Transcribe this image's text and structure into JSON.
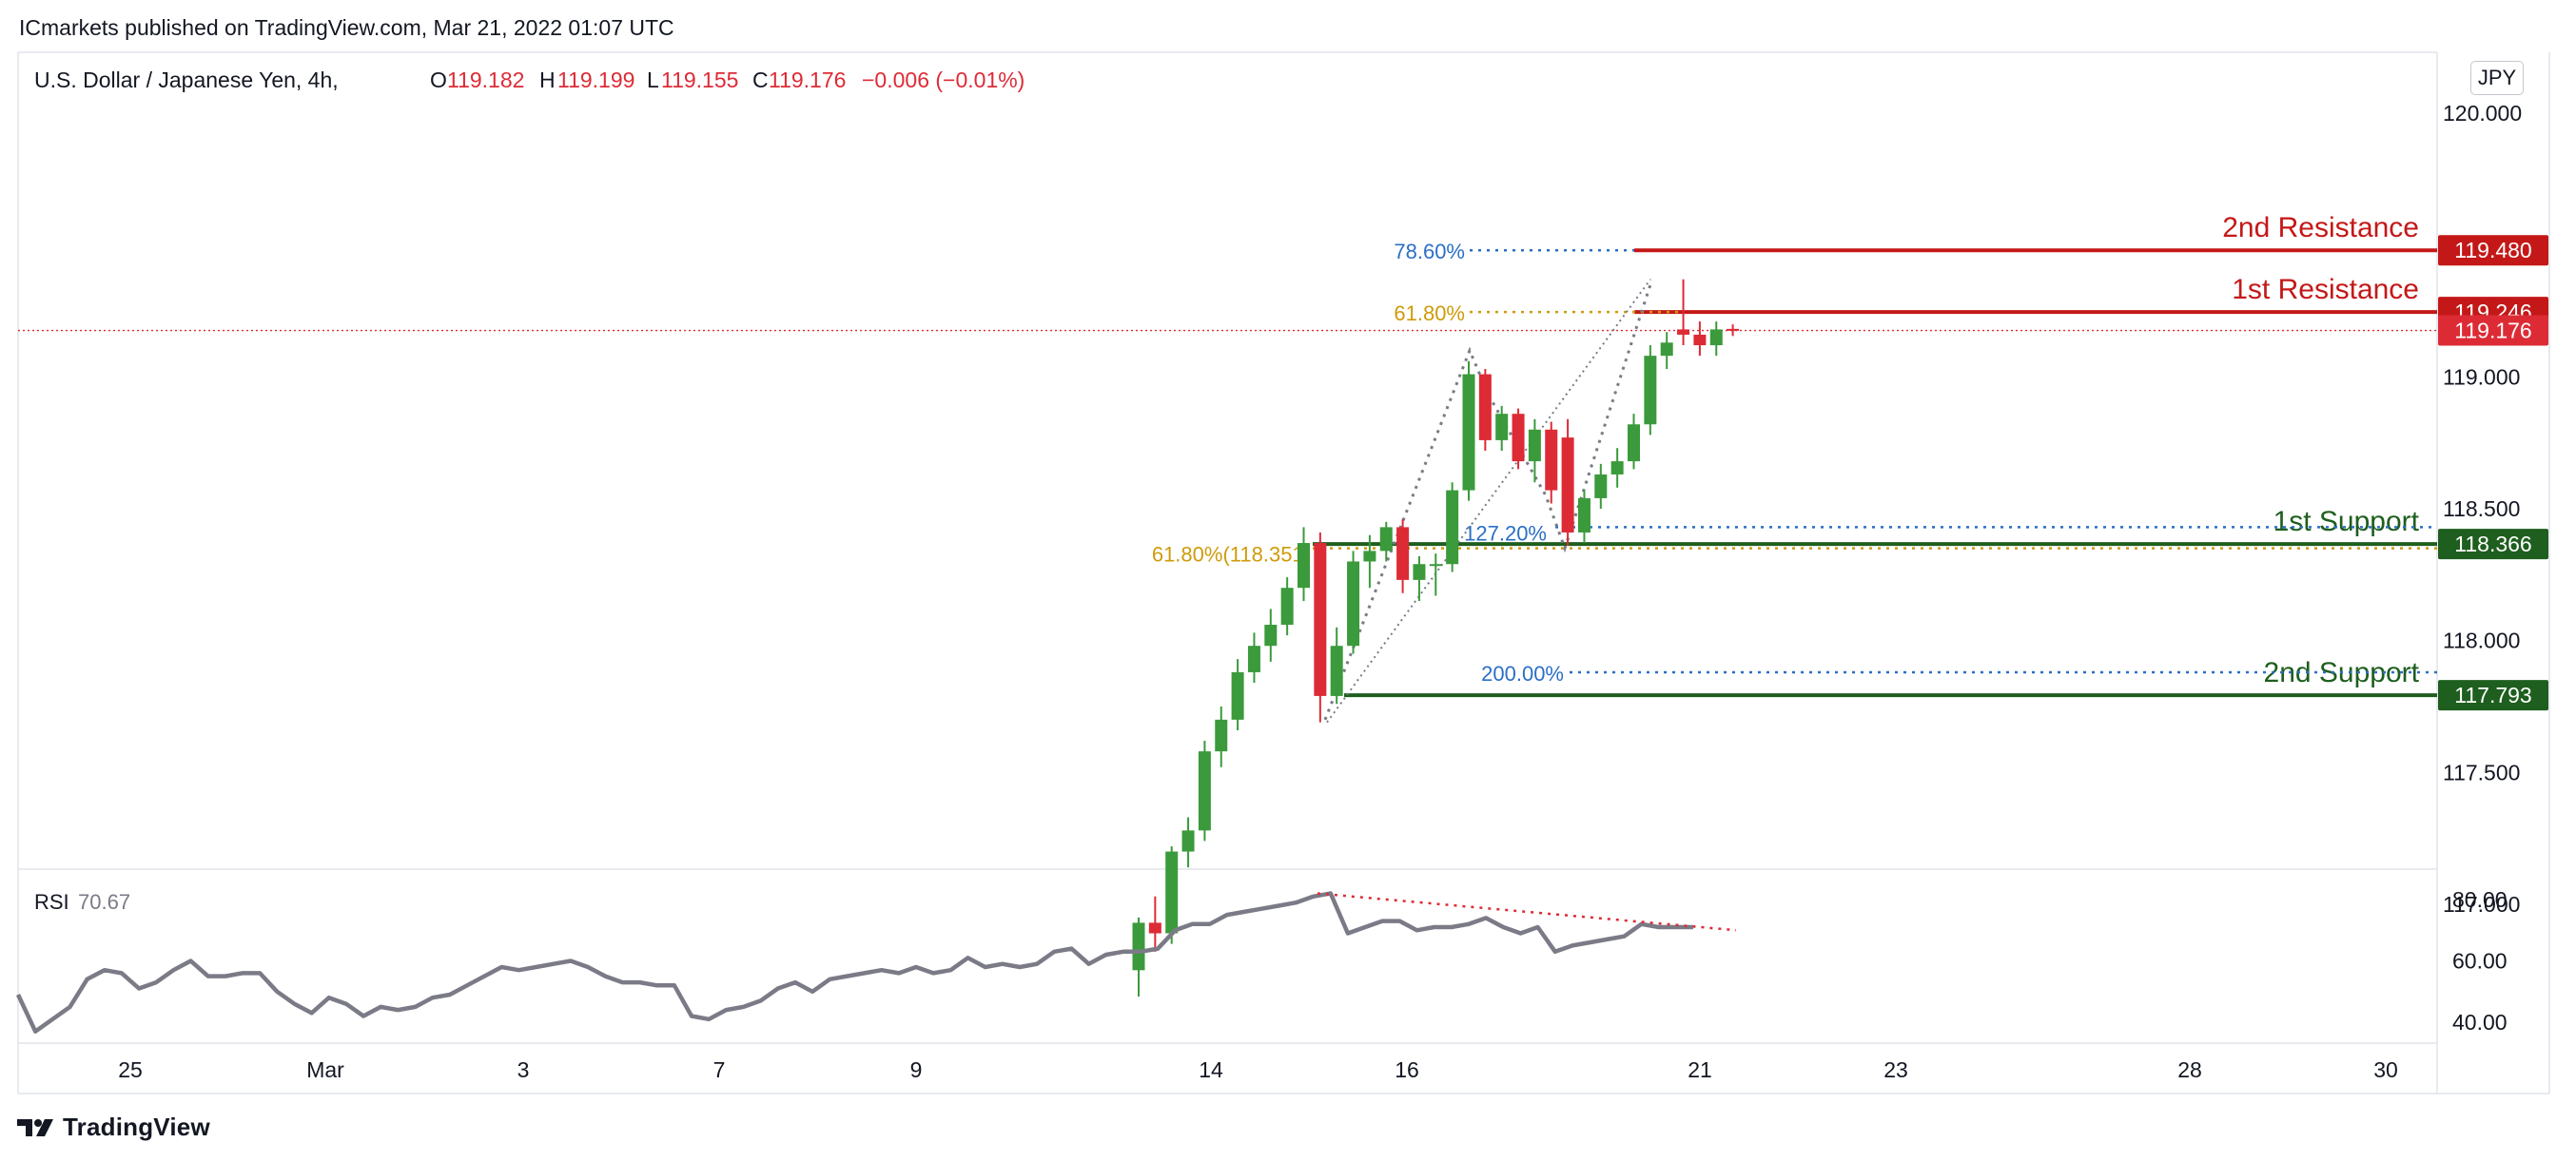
{
  "header": {
    "published": "ICmarkets published on TradingView.com, Mar 21, 2022 01:07 UTC"
  },
  "legend": {
    "symbol": "U.S. Dollar / Japanese Yen, 4h,",
    "o_label": "O",
    "o_value": "119.182",
    "h_label": "H",
    "h_value": "119.199",
    "l_label": "L",
    "l_value": "119.155",
    "c_label": "C",
    "c_value": "119.176",
    "change": "−0.006 (−0.01%)"
  },
  "currency_badge": "JPY",
  "brand": "TradingView",
  "colors": {
    "up": "#3b9a3b",
    "down": "#dd2b36",
    "resistance": "#c41818",
    "support": "#1e5e1e",
    "fib_orange": "#cf9b0b",
    "fib_blue": "#2b6fc6",
    "rsi_line": "#7b7b87",
    "axis_text": "#131722"
  },
  "chart_data": {
    "type": "candlestick",
    "timeframe": "4h",
    "yaxis": {
      "ticks": [
        "120.000",
        "119.000",
        "118.500",
        "118.000",
        "117.500",
        "117.000"
      ],
      "range": [
        116.85,
        120.2
      ]
    },
    "xaxis": {
      "ticks": [
        "25",
        "Mar",
        "3",
        "7",
        "9",
        "14",
        "16",
        "21",
        "23",
        "28",
        "30"
      ]
    },
    "candles": [
      {
        "o": 116.75,
        "h": 116.95,
        "l": 116.65,
        "c": 116.93
      },
      {
        "o": 116.93,
        "h": 117.03,
        "l": 116.82,
        "c": 116.89
      },
      {
        "o": 116.89,
        "h": 117.22,
        "l": 116.85,
        "c": 117.2
      },
      {
        "o": 117.2,
        "h": 117.33,
        "l": 117.14,
        "c": 117.28
      },
      {
        "o": 117.28,
        "h": 117.62,
        "l": 117.24,
        "c": 117.58
      },
      {
        "o": 117.58,
        "h": 117.75,
        "l": 117.52,
        "c": 117.7
      },
      {
        "o": 117.7,
        "h": 117.93,
        "l": 117.66,
        "c": 117.88
      },
      {
        "o": 117.88,
        "h": 118.03,
        "l": 117.84,
        "c": 117.98
      },
      {
        "o": 117.98,
        "h": 118.12,
        "l": 117.92,
        "c": 118.06
      },
      {
        "o": 118.06,
        "h": 118.24,
        "l": 118.02,
        "c": 118.2
      },
      {
        "o": 118.2,
        "h": 118.43,
        "l": 118.15,
        "c": 118.37
      },
      {
        "o": 118.37,
        "h": 118.41,
        "l": 117.69,
        "c": 117.79
      },
      {
        "o": 117.79,
        "h": 118.05,
        "l": 117.76,
        "c": 117.98
      },
      {
        "o": 117.98,
        "h": 118.34,
        "l": 117.95,
        "c": 118.3
      },
      {
        "o": 118.3,
        "h": 118.4,
        "l": 118.2,
        "c": 118.34
      },
      {
        "o": 118.34,
        "h": 118.45,
        "l": 118.3,
        "c": 118.43
      },
      {
        "o": 118.43,
        "h": 118.46,
        "l": 118.18,
        "c": 118.23
      },
      {
        "o": 118.23,
        "h": 118.32,
        "l": 118.15,
        "c": 118.29
      },
      {
        "o": 118.29,
        "h": 118.33,
        "l": 118.17,
        "c": 118.29
      },
      {
        "o": 118.29,
        "h": 118.6,
        "l": 118.26,
        "c": 118.57
      },
      {
        "o": 118.57,
        "h": 119.06,
        "l": 118.53,
        "c": 119.01
      },
      {
        "o": 119.01,
        "h": 119.03,
        "l": 118.72,
        "c": 118.76
      },
      {
        "o": 118.76,
        "h": 118.89,
        "l": 118.72,
        "c": 118.86
      },
      {
        "o": 118.86,
        "h": 118.88,
        "l": 118.65,
        "c": 118.68
      },
      {
        "o": 118.68,
        "h": 118.84,
        "l": 118.6,
        "c": 118.8
      },
      {
        "o": 118.8,
        "h": 118.83,
        "l": 118.52,
        "c": 118.57
      },
      {
        "o": 118.77,
        "h": 118.84,
        "l": 118.36,
        "c": 118.41
      },
      {
        "o": 118.41,
        "h": 118.57,
        "l": 118.37,
        "c": 118.54
      },
      {
        "o": 118.54,
        "h": 118.67,
        "l": 118.5,
        "c": 118.63
      },
      {
        "o": 118.63,
        "h": 118.73,
        "l": 118.58,
        "c": 118.68
      },
      {
        "o": 118.68,
        "h": 118.86,
        "l": 118.65,
        "c": 118.82
      },
      {
        "o": 118.82,
        "h": 119.12,
        "l": 118.78,
        "c": 119.08
      },
      {
        "o": 119.08,
        "h": 119.17,
        "l": 119.03,
        "c": 119.13
      },
      {
        "o": 119.18,
        "h": 119.37,
        "l": 119.12,
        "c": 119.16
      },
      {
        "o": 119.16,
        "h": 119.21,
        "l": 119.08,
        "c": 119.12
      },
      {
        "o": 119.12,
        "h": 119.21,
        "l": 119.08,
        "c": 119.18
      },
      {
        "o": 119.182,
        "h": 119.199,
        "l": 119.155,
        "c": 119.176
      }
    ],
    "levels": [
      {
        "name": "2nd Resistance",
        "value": "119.480",
        "price": 119.48,
        "kind": "resistance"
      },
      {
        "name": "1st Resistance",
        "value": "119.246",
        "price": 119.246,
        "kind": "resistance"
      },
      {
        "name": "1st Support",
        "value": "118.366",
        "price": 118.366,
        "kind": "support"
      },
      {
        "name": "2nd Support",
        "value": "117.793",
        "price": 117.793,
        "kind": "support"
      }
    ],
    "current_price": {
      "value": "119.176",
      "price": 119.176
    },
    "fib_labels": [
      {
        "text": "78.60%",
        "price": 119.48,
        "color": "fib_blue"
      },
      {
        "text": "61.80%",
        "price": 119.246,
        "color": "fib_orange"
      },
      {
        "text": "61.80%(118.351)",
        "price": 118.35,
        "color": "fib_orange"
      },
      {
        "text": "127.20%",
        "price": 118.43,
        "color": "fib_blue"
      },
      {
        "text": "200.00%",
        "price": 117.88,
        "color": "fib_blue"
      }
    ],
    "rsi": {
      "label": "RSI",
      "value": "70.67",
      "ticks": [
        "80.00",
        "60.00",
        "40.00"
      ],
      "range": [
        33,
        87
      ],
      "values": [
        49,
        37,
        41,
        45,
        54,
        57,
        56,
        51,
        53,
        57,
        60,
        55,
        55,
        56,
        56,
        50,
        46,
        43,
        48,
        46,
        42,
        45,
        44,
        45,
        48,
        49,
        52,
        55,
        58,
        57,
        58,
        59,
        60,
        58,
        55,
        53,
        53,
        52,
        52,
        42,
        41,
        44,
        45,
        47,
        51,
        53,
        50,
        54,
        55,
        56,
        57,
        56,
        58,
        56,
        57,
        61,
        58,
        59,
        58,
        59,
        63,
        64,
        59,
        62,
        63,
        63,
        64,
        70,
        72,
        72,
        75,
        76,
        77,
        78,
        79,
        81,
        82,
        69,
        71,
        73,
        73,
        70,
        71,
        71,
        72,
        74,
        71,
        69,
        71,
        63,
        65,
        66,
        67,
        68,
        72,
        71,
        71,
        71
      ]
    }
  }
}
